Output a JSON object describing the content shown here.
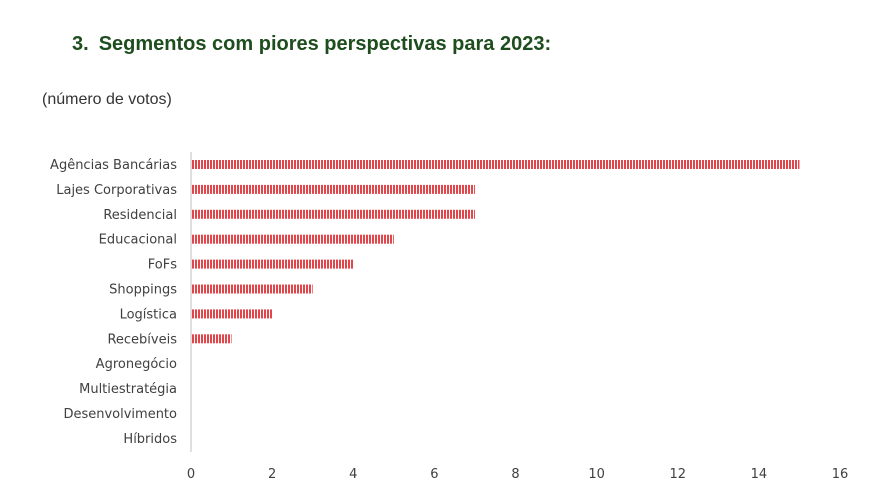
{
  "heading": {
    "number": "3.",
    "title": "Segmentos com piores perspectivas para 2023:"
  },
  "units_label": "(número de votos)",
  "colors": {
    "bar": "#e0464a",
    "bar_stripe": "#ffffff",
    "heading": "#1e4d1e",
    "axis": "#bfbfbf",
    "text": "#404040"
  },
  "chart_data": {
    "type": "bar",
    "orientation": "horizontal",
    "title": "",
    "xlabel": "",
    "ylabel": "",
    "categories": [
      "Agências Bancárias",
      "Lajes Corporativas",
      "Residencial",
      "Educacional",
      "FoFs",
      "Shoppings",
      "Logística",
      "Recebíveis",
      "Agronegócio",
      "Multiestratégia",
      "Desenvolvimento",
      "Híbridos"
    ],
    "values": [
      15,
      7,
      7,
      5,
      4,
      3,
      2,
      1,
      0,
      0,
      0,
      0
    ],
    "xlim": [
      0,
      16
    ],
    "xticks": [
      "0",
      "2",
      "4",
      "6",
      "8",
      "10",
      "12",
      "14",
      "16"
    ],
    "grid": false,
    "legend": "none"
  }
}
